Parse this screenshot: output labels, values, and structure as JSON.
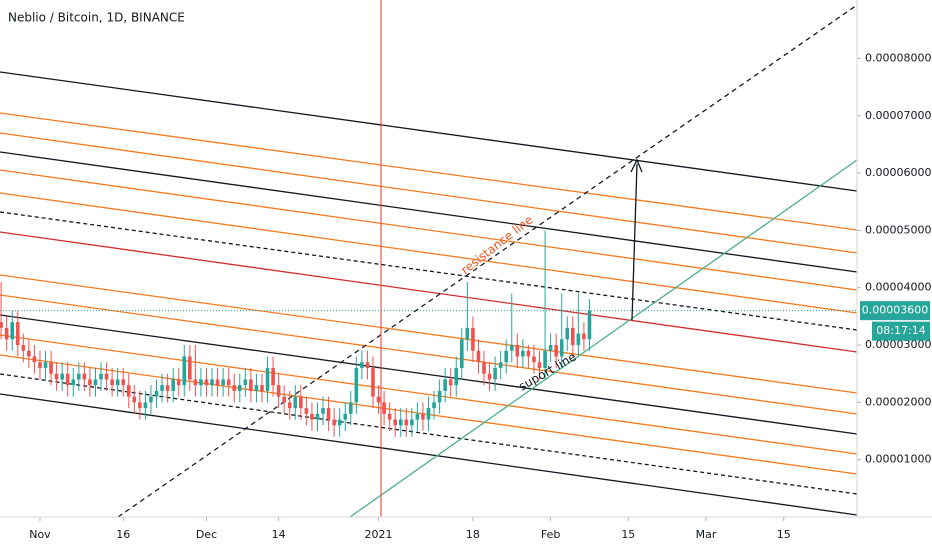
{
  "chart_data": {
    "type": "candlestick",
    "title": "Neblio / Bitcoin, 1D, BINANCE",
    "series": [
      {
        "up_color": "#26a69a",
        "down_color": "#ef5350",
        "open": [
          3.4e-05,
          3.3e-05,
          3.1e-05,
          3.4e-05,
          3e-05,
          2.9e-05,
          2.8e-05,
          2.7e-05,
          2.6e-05,
          2.7e-05,
          2.5e-05,
          2.4e-05,
          2.5e-05,
          2.3e-05,
          2.4e-05,
          2.5e-05,
          2.4e-05,
          2.3e-05,
          2.4e-05,
          2.5e-05,
          2.4e-05,
          2.3e-05,
          2.4e-05,
          2.3e-05,
          2.1e-05,
          2e-05,
          1.9e-05,
          2e-05,
          2.1e-05,
          2.2e-05,
          2.3e-05,
          2.2e-05,
          2.4e-05,
          2.3e-05,
          2.8e-05,
          2.4e-05,
          2.3e-05,
          2.4e-05,
          2.3e-05,
          2.4e-05,
          2.3e-05,
          2.4e-05,
          2.3e-05,
          2.2e-05,
          2.3e-05,
          2.4e-05,
          2.2e-05,
          2.3e-05,
          2.2e-05,
          2.6e-05,
          2.3e-05,
          2.1e-05,
          2e-05,
          1.9e-05,
          2.1e-05,
          1.9e-05,
          1.8e-05,
          1.7e-05,
          1.8e-05,
          1.9e-05,
          1.7e-05,
          1.6e-05,
          1.7e-05,
          1.8e-05,
          2e-05,
          2.6e-05,
          2.7e-05,
          2.6e-05,
          2.1e-05,
          2e-05,
          1.8e-05,
          1.7e-05,
          1.6e-05,
          1.7e-05,
          1.6e-05,
          1.7e-05,
          1.8e-05,
          1.7e-05,
          1.9e-05,
          2e-05,
          2.2e-05,
          2.4e-05,
          2.3e-05,
          2.6e-05,
          3.1e-05,
          3.3e-05,
          2.9e-05,
          2.7e-05,
          2.5e-05,
          2.4e-05,
          2.6e-05,
          2.7e-05,
          2.9e-05,
          3e-05,
          2.8e-05,
          2.9e-05,
          2.8e-05,
          2.7e-05,
          2.6e-05,
          2.9e-05,
          3e-05,
          2.8e-05,
          3.1e-05,
          3.3e-05,
          3e-05,
          3.2e-05,
          3.1e-05
        ],
        "high": [
          4.1e-05,
          3.5e-05,
          3.6e-05,
          3.6e-05,
          3.2e-05,
          3.1e-05,
          3e-05,
          2.9e-05,
          2.9e-05,
          2.9e-05,
          2.7e-05,
          2.7e-05,
          2.7e-05,
          2.6e-05,
          2.7e-05,
          2.7e-05,
          2.6e-05,
          2.6e-05,
          2.7e-05,
          2.7e-05,
          2.6e-05,
          2.6e-05,
          2.6e-05,
          2.5e-05,
          2.3e-05,
          2.2e-05,
          2.2e-05,
          2.3e-05,
          2.4e-05,
          2.5e-05,
          2.5e-05,
          2.6e-05,
          2.6e-05,
          3e-05,
          3e-05,
          3e-05,
          2.6e-05,
          2.6e-05,
          2.6e-05,
          2.6e-05,
          2.6e-05,
          2.6e-05,
          2.5e-05,
          2.5e-05,
          2.6e-05,
          2.6e-05,
          2.5e-05,
          2.5e-05,
          2.8e-05,
          2.8e-05,
          2.5e-05,
          2.3e-05,
          2.2e-05,
          2.3e-05,
          2.3e-05,
          2.1e-05,
          2e-05,
          2e-05,
          2.1e-05,
          2.1e-05,
          1.9e-05,
          1.9e-05,
          2e-05,
          2.2e-05,
          2.8e-05,
          2.9e-05,
          2.9e-05,
          2.8e-05,
          2.3e-05,
          2.2e-05,
          2e-05,
          1.9e-05,
          1.9e-05,
          1.9e-05,
          1.9e-05,
          2e-05,
          2e-05,
          2.1e-05,
          2.2e-05,
          2.4e-05,
          2.6e-05,
          2.6e-05,
          2.8e-05,
          3.3e-05,
          4.1e-05,
          3.5e-05,
          3.1e-05,
          2.9e-05,
          2.7e-05,
          2.8e-05,
          2.9e-05,
          3.1e-05,
          3.9e-05,
          3.2e-05,
          3.1e-05,
          3e-05,
          3e-05,
          2.9e-05,
          5e-05,
          3.2e-05,
          3.2e-05,
          3.9e-05,
          3.5e-05,
          3.5e-05,
          3.9e-05,
          3.4e-05,
          3.8e-05
        ],
        "low": [
          3.1e-05,
          2.9e-05,
          2.9e-05,
          2.8e-05,
          2.7e-05,
          2.6e-05,
          2.5e-05,
          2.4e-05,
          2.4e-05,
          2.3e-05,
          2.2e-05,
          2.2e-05,
          2.1e-05,
          2.1e-05,
          2.2e-05,
          2.2e-05,
          2.1e-05,
          2.1e-05,
          2.2e-05,
          2.2e-05,
          2.1e-05,
          2.1e-05,
          2.1e-05,
          1.9e-05,
          1.8e-05,
          1.7e-05,
          1.7e-05,
          1.8e-05,
          1.9e-05,
          2e-05,
          2e-05,
          2e-05,
          2.1e-05,
          2.1e-05,
          2.2e-05,
          2.1e-05,
          2.1e-05,
          2.1e-05,
          2.1e-05,
          2.1e-05,
          2.1e-05,
          2.1e-05,
          2e-05,
          2e-05,
          2.1e-05,
          2e-05,
          2e-05,
          2e-05,
          2e-05,
          2.1e-05,
          1.9e-05,
          1.8e-05,
          1.7e-05,
          1.7e-05,
          1.7e-05,
          1.6e-05,
          1.5e-05,
          1.5e-05,
          1.6e-05,
          1.5e-05,
          1.4e-05,
          1.4e-05,
          1.5e-05,
          1.6e-05,
          1.8e-05,
          2.4e-05,
          2.4e-05,
          1.9e-05,
          1.8e-05,
          1.6e-05,
          1.5e-05,
          1.4e-05,
          1.4e-05,
          1.4e-05,
          1.4e-05,
          1.5e-05,
          1.5e-05,
          1.5e-05,
          1.7e-05,
          1.8e-05,
          2e-05,
          2.1e-05,
          2.1e-05,
          2.4e-05,
          2.9e-05,
          2.7e-05,
          2.5e-05,
          2.3e-05,
          2.2e-05,
          2.2e-05,
          2.4e-05,
          2.5e-05,
          2.7e-05,
          2.6e-05,
          2.6e-05,
          2.6e-05,
          2.5e-05,
          2.4e-05,
          2.4e-05,
          2.7e-05,
          2.6e-05,
          2.6e-05,
          2.9e-05,
          2.8e-05,
          2.8e-05,
          2.9e-05,
          2.9e-05
        ],
        "close": [
          3.3e-05,
          3.1e-05,
          3.4e-05,
          3e-05,
          2.9e-05,
          2.8e-05,
          2.7e-05,
          2.6e-05,
          2.7e-05,
          2.5e-05,
          2.4e-05,
          2.5e-05,
          2.3e-05,
          2.4e-05,
          2.5e-05,
          2.4e-05,
          2.3e-05,
          2.4e-05,
          2.5e-05,
          2.4e-05,
          2.3e-05,
          2.4e-05,
          2.3e-05,
          2.1e-05,
          2e-05,
          1.9e-05,
          2e-05,
          2.1e-05,
          2.2e-05,
          2.3e-05,
          2.2e-05,
          2.4e-05,
          2.3e-05,
          2.8e-05,
          2.4e-05,
          2.3e-05,
          2.4e-05,
          2.3e-05,
          2.4e-05,
          2.3e-05,
          2.4e-05,
          2.3e-05,
          2.2e-05,
          2.3e-05,
          2.4e-05,
          2.2e-05,
          2.3e-05,
          2.2e-05,
          2.6e-05,
          2.3e-05,
          2.1e-05,
          2e-05,
          1.9e-05,
          2.1e-05,
          1.9e-05,
          1.8e-05,
          1.7e-05,
          1.8e-05,
          1.9e-05,
          1.7e-05,
          1.6e-05,
          1.7e-05,
          1.8e-05,
          2e-05,
          2.6e-05,
          2.7e-05,
          2.6e-05,
          2.1e-05,
          2e-05,
          1.8e-05,
          1.7e-05,
          1.6e-05,
          1.7e-05,
          1.6e-05,
          1.7e-05,
          1.8e-05,
          1.7e-05,
          1.9e-05,
          2e-05,
          2.2e-05,
          2.4e-05,
          2.3e-05,
          2.6e-05,
          3.1e-05,
          3.3e-05,
          2.9e-05,
          2.7e-05,
          2.5e-05,
          2.4e-05,
          2.6e-05,
          2.7e-05,
          2.9e-05,
          3e-05,
          2.8e-05,
          2.9e-05,
          2.8e-05,
          2.7e-05,
          2.6e-05,
          2.9e-05,
          3e-05,
          2.8e-05,
          3.1e-05,
          3.3e-05,
          3e-05,
          3.2e-05,
          3.1e-05,
          3.6e-05
        ]
      }
    ],
    "xlim": [
      -0.2,
      154.2
    ],
    "xticks": [
      {
        "value": 7,
        "label": "Nov"
      },
      {
        "value": 22,
        "label": "16"
      },
      {
        "value": 37,
        "label": "Dec"
      },
      {
        "value": 50,
        "label": "14"
      },
      {
        "value": 68,
        "label": "2021"
      },
      {
        "value": 85,
        "label": "18"
      },
      {
        "value": 99,
        "label": "Feb"
      },
      {
        "value": 113,
        "label": "15"
      },
      {
        "value": 127,
        "label": "Mar"
      },
      {
        "value": 141,
        "label": "15"
      }
    ],
    "ylim": [
      0,
      9.02e-05
    ],
    "yticks": [
      {
        "value": 1e-05,
        "label": "0.00001000"
      },
      {
        "value": 2e-05,
        "label": "0.00002000"
      },
      {
        "value": 3e-05,
        "label": "0.00003000"
      },
      {
        "value": 4e-05,
        "label": "0.00004000"
      },
      {
        "value": 5e-05,
        "label": "0.00005000"
      },
      {
        "value": 6e-05,
        "label": "0.00006000"
      },
      {
        "value": 7e-05,
        "label": "0.00007000"
      },
      {
        "value": 8e-05,
        "label": "0.00008000"
      }
    ],
    "last_price": {
      "value": 3.6e-05,
      "label": "0.00003600"
    },
    "countdown": "08:17:14",
    "annotations": [
      "resistance line",
      "suport line"
    ]
  }
}
